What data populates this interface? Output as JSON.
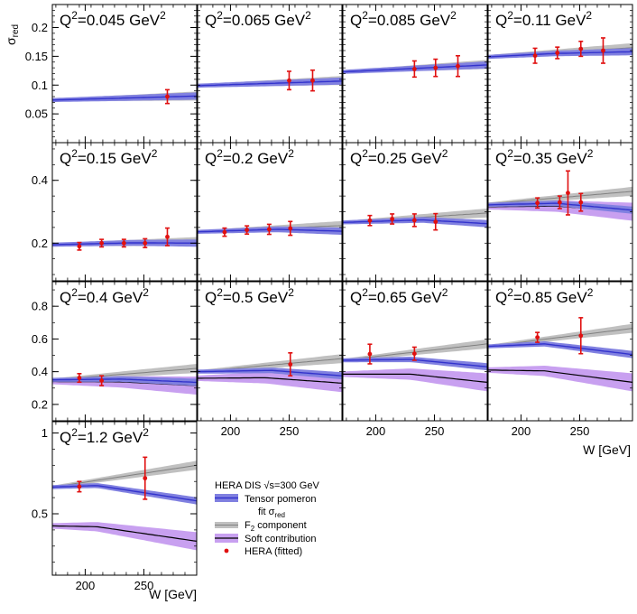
{
  "chart_data": {
    "type": "line",
    "y_axis_label": "σ",
    "y_axis_label_sub": "red",
    "x_axis_label": "W [GeV]",
    "x_ticks": [
      200,
      250
    ],
    "xlim": [
      172,
      295
    ],
    "colors": {
      "tensor": "#3333cc",
      "tensor_band": "#8080e0",
      "f2": "#808080",
      "f2_band": "#c0c0c0",
      "soft": "#000000",
      "soft_band": "#c8a0f0",
      "data": "#e01010"
    },
    "legend": {
      "header": "HERA DIS √s=300 GeV",
      "entries": [
        {
          "key": "tensor",
          "label": "Tensor pomeron"
        },
        {
          "key": "fit",
          "label": "fit σ",
          "sub": "red"
        },
        {
          "key": "f2",
          "label": "F",
          "sub": "2",
          "rest": " component"
        },
        {
          "key": "soft",
          "label": "Soft contribution"
        },
        {
          "key": "data",
          "label": "HERA (fitted)"
        }
      ]
    },
    "panels": [
      {
        "title": "Q",
        "sup": "2",
        "rest": "=0.045 GeV",
        "sup2": "2",
        "row": 0,
        "col": 0,
        "ylim": [
          0,
          0.24
        ],
        "yticks": [
          0.05,
          0.1,
          0.15,
          0.2
        ],
        "tensor": [
          [
            172,
            0.074
          ],
          [
            295,
            0.081
          ]
        ],
        "f2": [
          [
            172,
            0.074
          ],
          [
            295,
            0.081
          ]
        ],
        "points": [
          [
            270,
            0.08,
            0.012
          ]
        ]
      },
      {
        "title": "Q",
        "sup": "2",
        "rest": "=0.065 GeV",
        "sup2": "2",
        "row": 0,
        "col": 1,
        "ylim": [
          0,
          0.24
        ],
        "yticks": [],
        "tensor": [
          [
            172,
            0.099
          ],
          [
            295,
            0.107
          ]
        ],
        "f2": [
          [
            172,
            0.099
          ],
          [
            295,
            0.108
          ]
        ],
        "points": [
          [
            250,
            0.108,
            0.016
          ],
          [
            270,
            0.108,
            0.018
          ]
        ]
      },
      {
        "title": "Q",
        "sup": "2",
        "rest": "=0.085 GeV",
        "sup2": "2",
        "row": 0,
        "col": 2,
        "ylim": [
          0,
          0.24
        ],
        "yticks": [],
        "tensor": [
          [
            172,
            0.123
          ],
          [
            295,
            0.135
          ]
        ],
        "f2": [
          [
            172,
            0.123
          ],
          [
            295,
            0.136
          ]
        ],
        "points": [
          [
            233,
            0.128,
            0.014
          ],
          [
            251,
            0.13,
            0.015
          ],
          [
            270,
            0.133,
            0.018
          ]
        ]
      },
      {
        "title": "Q",
        "sup": "2",
        "rest": "=0.11 GeV",
        "sup2": "2",
        "row": 0,
        "col": 3,
        "ylim": [
          0,
          0.24
        ],
        "yticks": [],
        "tensor": [
          [
            172,
            0.149
          ],
          [
            230,
            0.155
          ],
          [
            295,
            0.158
          ]
        ],
        "f2": [
          [
            172,
            0.15
          ],
          [
            295,
            0.165
          ]
        ],
        "points": [
          [
            212,
            0.151,
            0.013
          ],
          [
            231,
            0.156,
            0.01
          ],
          [
            251,
            0.163,
            0.013
          ],
          [
            270,
            0.16,
            0.022
          ]
        ]
      },
      {
        "title": "Q",
        "sup": "2",
        "rest": "=0.15 GeV",
        "sup2": "2",
        "row": 1,
        "col": 0,
        "ylim": [
          0.08,
          0.52
        ],
        "yticks": [
          0.2,
          0.4
        ],
        "tensor": [
          [
            172,
            0.195
          ],
          [
            240,
            0.201
          ],
          [
            295,
            0.2
          ]
        ],
        "f2": [
          [
            172,
            0.195
          ],
          [
            295,
            0.205
          ]
        ],
        "points": [
          [
            195,
            0.19,
            0.012
          ],
          [
            214,
            0.2,
            0.012
          ],
          [
            233,
            0.2,
            0.012
          ],
          [
            251,
            0.2,
            0.014
          ],
          [
            270,
            0.22,
            0.028
          ]
        ]
      },
      {
        "title": "Q",
        "sup": "2",
        "rest": "=0.2 GeV",
        "sup2": "2",
        "row": 1,
        "col": 1,
        "ylim": [
          0.08,
          0.52
        ],
        "yticks": [],
        "tensor": [
          [
            172,
            0.236
          ],
          [
            240,
            0.244
          ],
          [
            295,
            0.238
          ]
        ],
        "f2": [
          [
            172,
            0.236
          ],
          [
            295,
            0.256
          ]
        ],
        "points": [
          [
            195,
            0.235,
            0.013
          ],
          [
            214,
            0.242,
            0.013
          ],
          [
            233,
            0.244,
            0.016
          ],
          [
            251,
            0.247,
            0.022
          ]
        ]
      },
      {
        "title": "Q",
        "sup": "2",
        "rest": "=0.25 GeV",
        "sup2": "2",
        "row": 1,
        "col": 2,
        "ylim": [
          0.08,
          0.52
        ],
        "yticks": [],
        "tensor": [
          [
            172,
            0.266
          ],
          [
            240,
            0.274
          ],
          [
            295,
            0.262
          ]
        ],
        "f2": [
          [
            172,
            0.266
          ],
          [
            295,
            0.296
          ]
        ],
        "points": [
          [
            195,
            0.272,
            0.016
          ],
          [
            214,
            0.277,
            0.016
          ],
          [
            233,
            0.273,
            0.02
          ],
          [
            251,
            0.268,
            0.026
          ]
        ]
      },
      {
        "title": "Q",
        "sup": "2",
        "rest": "=0.35 GeV",
        "sup2": "2",
        "row": 1,
        "col": 3,
        "ylim": [
          0.08,
          0.52
        ],
        "yticks": [],
        "tensor": [
          [
            172,
            0.322
          ],
          [
            230,
            0.327
          ],
          [
            295,
            0.305
          ]
        ],
        "f2": [
          [
            172,
            0.325
          ],
          [
            295,
            0.365
          ]
        ],
        "soft": [
          [
            172,
            0.316
          ],
          [
            230,
            0.318
          ],
          [
            295,
            0.3
          ]
        ],
        "points": [
          [
            214,
            0.328,
            0.016
          ],
          [
            233,
            0.33,
            0.02
          ],
          [
            240,
            0.36,
            0.07
          ],
          [
            251,
            0.33,
            0.028
          ]
        ]
      },
      {
        "title": "Q",
        "sup": "2",
        "rest": "=0.4 GeV",
        "sup2": "2",
        "row": 2,
        "col": 0,
        "ylim": [
          0.1,
          0.95
        ],
        "yticks": [
          0.2,
          0.4,
          0.6,
          0.8
        ],
        "tensor": [
          [
            172,
            0.35
          ],
          [
            230,
            0.355
          ],
          [
            295,
            0.335
          ]
        ],
        "f2": [
          [
            172,
            0.35
          ],
          [
            295,
            0.42
          ]
        ],
        "soft": [
          [
            172,
            0.34
          ],
          [
            230,
            0.338
          ],
          [
            295,
            0.315
          ]
        ],
        "points": [
          [
            195,
            0.362,
            0.026
          ],
          [
            214,
            0.345,
            0.03
          ]
        ]
      },
      {
        "title": "Q",
        "sup": "2",
        "rest": "=0.5 GeV",
        "sup2": "2",
        "row": 2,
        "col": 1,
        "ylim": [
          0.1,
          0.95
        ],
        "yticks": [],
        "tensor": [
          [
            172,
            0.4
          ],
          [
            235,
            0.408
          ],
          [
            295,
            0.375
          ]
        ],
        "f2": [
          [
            172,
            0.4
          ],
          [
            295,
            0.48
          ]
        ],
        "soft": [
          [
            172,
            0.36
          ],
          [
            230,
            0.363
          ],
          [
            295,
            0.33
          ]
        ],
        "points": [
          [
            251,
            0.445,
            0.07
          ]
        ]
      },
      {
        "title": "Q",
        "sup": "2",
        "rest": "=0.65 GeV",
        "sup2": "2",
        "row": 2,
        "col": 2,
        "ylim": [
          0.1,
          0.95
        ],
        "yticks": [],
        "tensor": [
          [
            172,
            0.47
          ],
          [
            230,
            0.475
          ],
          [
            295,
            0.43
          ]
        ],
        "f2": [
          [
            172,
            0.47
          ],
          [
            295,
            0.57
          ]
        ],
        "soft": [
          [
            172,
            0.385
          ],
          [
            230,
            0.385
          ],
          [
            295,
            0.335
          ]
        ],
        "points": [
          [
            195,
            0.508,
            0.06
          ],
          [
            233,
            0.51,
            0.04
          ]
        ]
      },
      {
        "title": "Q",
        "sup": "2",
        "rest": "=0.85 GeV",
        "sup2": "2",
        "row": 2,
        "col": 3,
        "ylim": [
          0.1,
          0.95
        ],
        "yticks": [],
        "tensor": [
          [
            172,
            0.555
          ],
          [
            220,
            0.57
          ],
          [
            295,
            0.505
          ]
        ],
        "f2": [
          [
            172,
            0.555
          ],
          [
            295,
            0.665
          ]
        ],
        "soft": [
          [
            172,
            0.41
          ],
          [
            220,
            0.405
          ],
          [
            295,
            0.335
          ]
        ],
        "points": [
          [
            214,
            0.61,
            0.03
          ],
          [
            251,
            0.62,
            0.11
          ]
        ]
      },
      {
        "title": "Q",
        "sup": "2",
        "rest": "=1.2 GeV",
        "sup2": "2",
        "row": 3,
        "col": 0,
        "ylim": [
          0.12,
          1.07
        ],
        "yticks": [
          0.5,
          1
        ],
        "tensor": [
          [
            172,
            0.665
          ],
          [
            210,
            0.675
          ],
          [
            295,
            0.58
          ]
        ],
        "f2": [
          [
            172,
            0.665
          ],
          [
            295,
            0.8
          ]
        ],
        "soft": [
          [
            172,
            0.425
          ],
          [
            210,
            0.42
          ],
          [
            295,
            0.33
          ]
        ],
        "points": [
          [
            195,
            0.668,
            0.032
          ],
          [
            251,
            0.72,
            0.13
          ]
        ]
      }
    ]
  }
}
